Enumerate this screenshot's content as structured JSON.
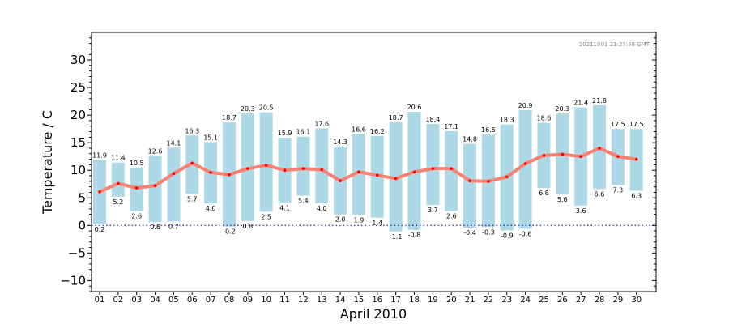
{
  "chart_data": {
    "type": "bar",
    "xlabel": "April 2010",
    "ylabel": "Temperature / C",
    "timestamp": "20211001 21:27:58 GMT",
    "ylim": [
      -12,
      35
    ],
    "yticks": [
      -10,
      -5,
      0,
      5,
      10,
      15,
      20,
      25,
      30
    ],
    "ytick_labels": [
      "−10",
      "−5",
      "0",
      "5",
      "10",
      "15",
      "20",
      "25",
      "30"
    ],
    "categories": [
      "01",
      "02",
      "03",
      "04",
      "05",
      "06",
      "07",
      "08",
      "09",
      "10",
      "11",
      "12",
      "13",
      "14",
      "15",
      "16",
      "17",
      "18",
      "19",
      "20",
      "21",
      "22",
      "23",
      "24",
      "25",
      "26",
      "27",
      "28",
      "29",
      "30"
    ],
    "series": [
      {
        "name": "max",
        "values": [
          11.9,
          11.4,
          10.5,
          12.6,
          14.1,
          16.3,
          15.1,
          18.7,
          20.3,
          20.5,
          15.9,
          16.1,
          17.6,
          14.3,
          16.6,
          16.2,
          18.7,
          20.6,
          18.4,
          17.1,
          14.8,
          16.5,
          18.3,
          20.9,
          18.6,
          20.3,
          21.4,
          21.8,
          17.5,
          17.5
        ],
        "labels": [
          "11.9",
          "11.4",
          "10.5",
          "12.6",
          "14.1",
          "16.3",
          "15.1",
          "18.7",
          "20.3",
          "20.5",
          "15.9",
          "16.1",
          "17.6",
          "14.3",
          "16.6",
          "16.2",
          "18.7",
          "20.6",
          "18.4",
          "17.1",
          "14.8",
          "16.5",
          "18.3",
          "20.9",
          "18.6",
          "20.3",
          "21.4",
          "21.8",
          "17.5",
          "17.5"
        ]
      },
      {
        "name": "min",
        "values": [
          0.2,
          5.2,
          2.6,
          0.6,
          0.7,
          5.7,
          4.0,
          -0.2,
          0.8,
          2.5,
          4.1,
          5.4,
          4.0,
          2.0,
          1.9,
          1.4,
          -1.1,
          -0.8,
          3.7,
          2.6,
          -0.4,
          -0.3,
          -0.9,
          -0.6,
          6.8,
          5.6,
          3.6,
          6.6,
          7.3,
          6.3
        ],
        "labels": [
          "0.2",
          "5.2",
          "2.6",
          "0.6",
          "0.7",
          "5.7",
          "4.0",
          "-0.2",
          "0.8",
          "2.5",
          "4.1",
          "5.4",
          "4.0",
          "2.0",
          "1.9",
          "1.4",
          "-1.1",
          "-0.8",
          "3.7",
          "2.6",
          "-0.4",
          "-0.3",
          "-0.9",
          "-0.6",
          "6.8",
          "5.6",
          "3.6",
          "6.6",
          "7.3",
          "6.3"
        ]
      },
      {
        "name": "mean",
        "values": [
          6.1,
          7.6,
          6.8,
          7.2,
          9.4,
          11.3,
          9.6,
          9.2,
          10.3,
          10.9,
          10.0,
          10.3,
          10.1,
          8.1,
          9.7,
          9.1,
          8.5,
          9.7,
          10.3,
          10.3,
          8.1,
          8.0,
          8.8,
          11.2,
          12.7,
          12.9,
          12.5,
          14.0,
          12.5,
          12.0
        ]
      }
    ],
    "colors": {
      "bar": "#add8e6",
      "mean_line": "#fa8072",
      "mean_marker": "#ff0000",
      "zero_line": "#0000cc",
      "axis": "#000000"
    }
  }
}
